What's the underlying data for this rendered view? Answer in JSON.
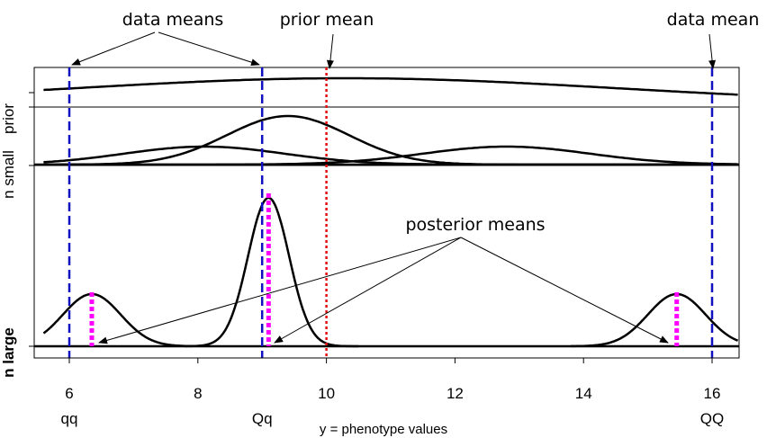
{
  "chart_data": {
    "type": "line",
    "xlabel": "y = phenotype values",
    "xlim": [
      5.6,
      16.4
    ],
    "x_ticks": [
      6,
      8,
      10,
      12,
      14,
      16
    ],
    "genotype_labels": [
      {
        "x": 6,
        "label": "qq"
      },
      {
        "x": 9,
        "label": "Qq"
      },
      {
        "x": 16,
        "label": "QQ"
      }
    ],
    "panels": [
      {
        "id": "prior",
        "ylabel": ""
      },
      {
        "id": "n-small",
        "ylabel": "n small"
      },
      {
        "id": "n-large",
        "ylabel": "n large"
      }
    ],
    "prior_label": "prior",
    "data_means": [
      6,
      9,
      16
    ],
    "prior_mean": 10,
    "posterior_means": [
      6.35,
      9.1,
      15.45
    ],
    "colors": {
      "data_mean": "#1010c0",
      "prior_mean": "#e01010",
      "posterior_mean": "#ff00ff",
      "curve": "#000000"
    },
    "annotations": {
      "data_means": "data means",
      "prior_mean": "prior mean",
      "data_mean": "data mean",
      "posterior_means": "posterior means"
    }
  }
}
